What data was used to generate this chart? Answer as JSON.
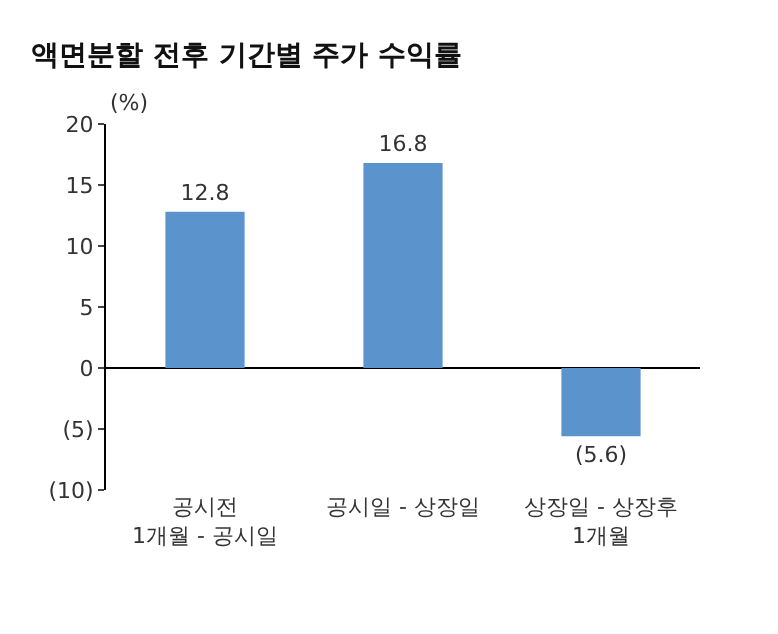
{
  "chart_data": {
    "type": "bar",
    "title": "액면분할 전후 기간별 주가 수익률",
    "ylabel": "(%)",
    "categories": [
      "공시전\n1개월 - 공시일",
      "공시일 - 상장일",
      "상장일 - 상장후\n1개월"
    ],
    "values": [
      12.8,
      16.8,
      -5.6
    ],
    "color": "#5b93cd",
    "value_labels": [
      "12.8",
      "16.8",
      "(5.6)"
    ],
    "yticks": [
      {
        "value": -10,
        "label": "(10)"
      },
      {
        "value": -5,
        "label": "(5)"
      },
      0,
      5,
      10,
      15,
      20
    ],
    "ylim": [
      -10,
      20
    ]
  }
}
